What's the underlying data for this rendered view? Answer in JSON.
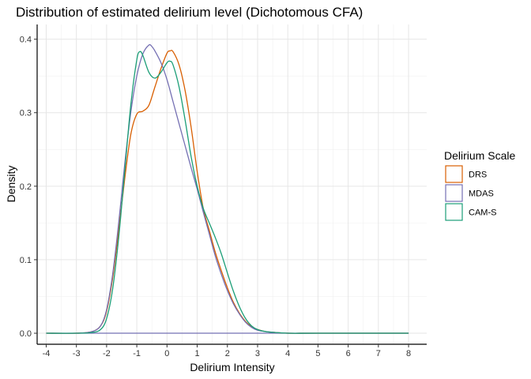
{
  "chart_data": {
    "type": "line",
    "title": "Distribution of estimated delirium level (Dichotomous CFA)",
    "xlabel": "Delirium Intensity",
    "ylabel": "Density",
    "xlim": [
      -4.3,
      8.6
    ],
    "ylim": [
      -0.015,
      0.42
    ],
    "x_ticks": [
      -4,
      -3,
      -2,
      -1,
      0,
      1,
      2,
      3,
      4,
      5,
      6,
      7,
      8
    ],
    "y_ticks": [
      0.0,
      0.1,
      0.2,
      0.3,
      0.4
    ],
    "y_tick_labels": [
      "0.0",
      "0.1",
      "0.2",
      "0.3",
      "0.4"
    ],
    "grid": true,
    "legend": {
      "title": "Delirium Scale",
      "position": "right"
    },
    "baseline_range": [
      -4,
      8
    ],
    "series": [
      {
        "name": "DRS",
        "color": "#D95F02",
        "x": [
          -4,
          -3,
          -2.5,
          -2.2,
          -2.0,
          -1.8,
          -1.6,
          -1.4,
          -1.2,
          -1.0,
          -0.8,
          -0.6,
          -0.4,
          -0.2,
          0.0,
          0.1,
          0.2,
          0.4,
          0.6,
          0.8,
          1.0,
          1.2,
          1.4,
          1.6,
          1.8,
          2.0,
          2.2,
          2.4,
          2.6,
          2.8,
          3.0,
          3.3,
          3.6,
          4.0,
          5.0,
          8.0
        ],
        "y": [
          0.0,
          0.0,
          0.002,
          0.01,
          0.03,
          0.075,
          0.14,
          0.21,
          0.27,
          0.298,
          0.302,
          0.31,
          0.335,
          0.36,
          0.381,
          0.384,
          0.383,
          0.365,
          0.33,
          0.28,
          0.22,
          0.17,
          0.14,
          0.11,
          0.085,
          0.062,
          0.042,
          0.027,
          0.016,
          0.009,
          0.005,
          0.002,
          0.001,
          0.0,
          0.0,
          0.0
        ]
      },
      {
        "name": "MDAS",
        "color": "#7570B3",
        "x": [
          -4,
          -3,
          -2.5,
          -2.2,
          -2.0,
          -1.8,
          -1.6,
          -1.4,
          -1.2,
          -1.0,
          -0.8,
          -0.6,
          -0.5,
          -0.4,
          -0.2,
          0.0,
          0.2,
          0.4,
          0.6,
          0.8,
          1.0,
          1.2,
          1.4,
          1.6,
          1.8,
          2.0,
          2.2,
          2.4,
          2.6,
          2.8,
          3.0,
          3.3,
          3.6,
          4.0,
          5.0,
          8.0
        ],
        "y": [
          0.0,
          0.0,
          0.002,
          0.01,
          0.032,
          0.08,
          0.15,
          0.23,
          0.3,
          0.35,
          0.38,
          0.392,
          0.39,
          0.384,
          0.368,
          0.345,
          0.315,
          0.285,
          0.255,
          0.225,
          0.196,
          0.165,
          0.135,
          0.105,
          0.08,
          0.058,
          0.04,
          0.026,
          0.015,
          0.008,
          0.004,
          0.002,
          0.001,
          0.0,
          0.0,
          0.0
        ]
      },
      {
        "name": "CAM-S",
        "color": "#1B9E77",
        "x": [
          -4,
          -3,
          -2.5,
          -2.2,
          -2.0,
          -1.8,
          -1.6,
          -1.4,
          -1.2,
          -1.0,
          -0.9,
          -0.8,
          -0.6,
          -0.4,
          -0.2,
          0.0,
          0.1,
          0.2,
          0.4,
          0.6,
          0.8,
          1.0,
          1.2,
          1.4,
          1.6,
          1.8,
          2.0,
          2.2,
          2.4,
          2.6,
          2.8,
          3.0,
          3.3,
          3.6,
          4.0,
          5.0,
          8.0
        ],
        "y": [
          0.0,
          0.0,
          0.001,
          0.005,
          0.02,
          0.06,
          0.13,
          0.22,
          0.31,
          0.372,
          0.383,
          0.378,
          0.355,
          0.347,
          0.355,
          0.368,
          0.37,
          0.365,
          0.335,
          0.29,
          0.24,
          0.2,
          0.17,
          0.15,
          0.13,
          0.108,
          0.082,
          0.057,
          0.036,
          0.02,
          0.01,
          0.005,
          0.002,
          0.001,
          0.0,
          0.0,
          0.0
        ]
      }
    ]
  }
}
